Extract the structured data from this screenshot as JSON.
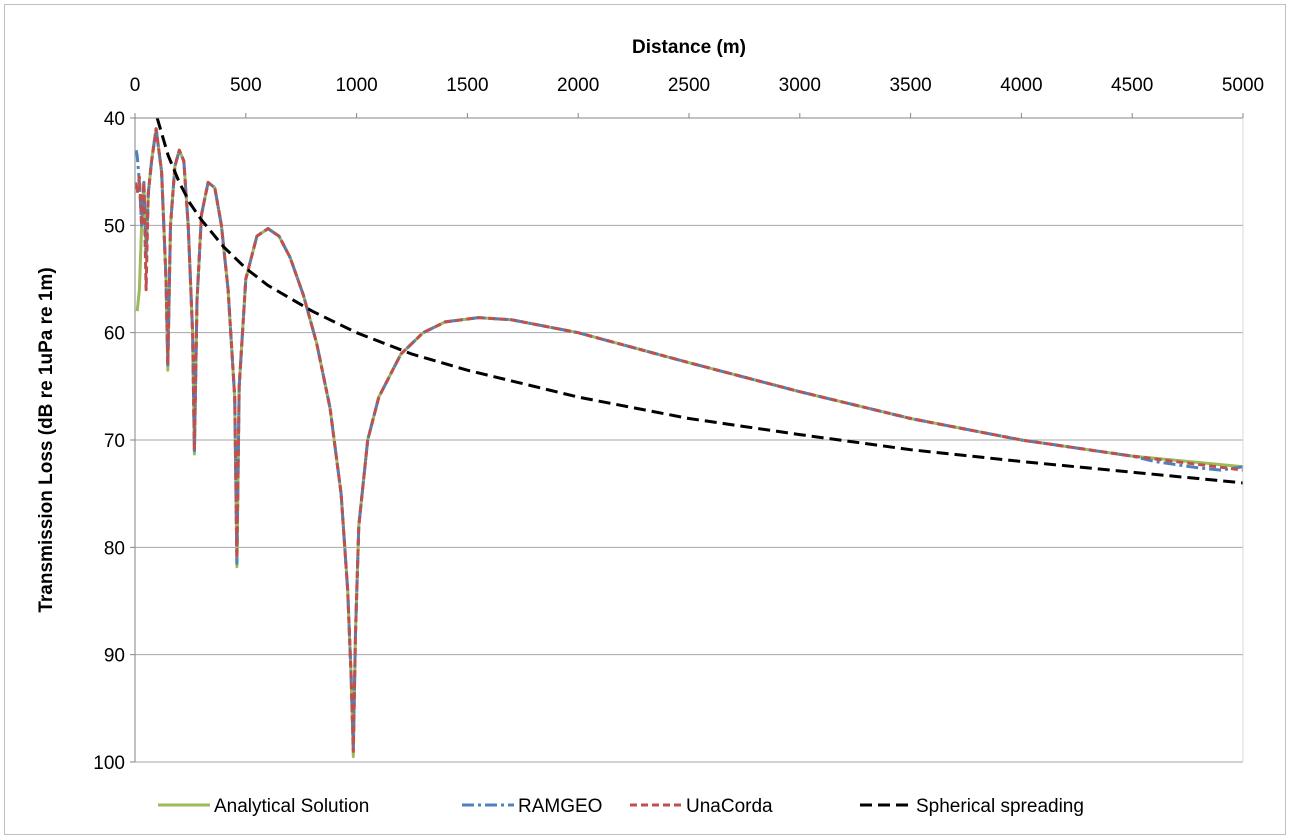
{
  "chart_data": {
    "type": "line",
    "xlabel": "Distance (m)",
    "ylabel": "Transmission Loss (dB re 1uPa re 1m)",
    "x_axis_position": "top",
    "y_axis_reversed": true,
    "xlim": [
      0,
      5000
    ],
    "ylim": [
      40,
      100
    ],
    "x_ticks": [
      0,
      500,
      1000,
      1500,
      2000,
      2500,
      3000,
      3500,
      4000,
      4500,
      5000
    ],
    "y_ticks": [
      40,
      50,
      60,
      70,
      80,
      90,
      100
    ],
    "grid": "horizontal",
    "legend_position": "bottom",
    "series": [
      {
        "name": "Analytical Solution",
        "color": "#9bbb59",
        "style": "solid",
        "x": [
          10,
          20,
          30,
          40,
          50,
          60,
          75,
          95,
          120,
          140,
          148,
          160,
          180,
          200,
          220,
          240,
          260,
          268,
          280,
          300,
          330,
          360,
          390,
          420,
          450,
          460,
          470,
          500,
          550,
          600,
          650,
          700,
          760,
          820,
          880,
          930,
          960,
          975,
          985,
          995,
          1010,
          1050,
          1100,
          1200,
          1300,
          1400,
          1550,
          1700,
          2000,
          2500,
          3000,
          3500,
          4000,
          4500,
          5000
        ],
        "y": [
          58,
          56,
          50,
          46,
          53,
          47,
          44,
          41,
          45,
          55,
          63.5,
          50,
          44.5,
          43,
          44,
          50,
          60,
          71.3,
          57,
          49,
          46,
          46.5,
          50,
          56,
          66,
          81.8,
          65,
          55,
          51,
          50.3,
          51,
          53,
          56.5,
          61,
          67,
          75,
          84,
          92,
          99.5,
          88,
          78,
          70,
          66,
          62,
          60,
          59,
          58.6,
          58.8,
          60,
          62.8,
          65.5,
          68,
          70,
          71.5,
          72.5
        ]
      },
      {
        "name": "RAMGEO",
        "color": "#4f81bd",
        "style": "dash-dot",
        "x": [
          5,
          10,
          20,
          30,
          40,
          50,
          60,
          75,
          95,
          120,
          140,
          148,
          160,
          180,
          200,
          220,
          240,
          260,
          268,
          280,
          300,
          330,
          360,
          390,
          420,
          450,
          460,
          470,
          500,
          550,
          600,
          650,
          700,
          760,
          820,
          880,
          930,
          960,
          975,
          985,
          995,
          1010,
          1050,
          1100,
          1200,
          1300,
          1400,
          1550,
          1700,
          2000,
          2500,
          3000,
          3500,
          4000,
          4200,
          4400,
          4500,
          4600,
          4700,
          4800,
          4900,
          5000
        ],
        "y": [
          43,
          43.5,
          46,
          50,
          46,
          53,
          47,
          44,
          41,
          45,
          55,
          63,
          50,
          44.5,
          43,
          44,
          50,
          60,
          71,
          57,
          49,
          46,
          46.5,
          50,
          56,
          66,
          81.5,
          65,
          55,
          51,
          50.3,
          51,
          53,
          56.5,
          61,
          67,
          75,
          84,
          92,
          98.5,
          88,
          78,
          70,
          66,
          62,
          60,
          59,
          58.6,
          58.8,
          60,
          62.8,
          65.5,
          68,
          70,
          70.6,
          71.2,
          71.5,
          72,
          72.3,
          72.6,
          72.8,
          72.5
        ]
      },
      {
        "name": "UnaCorda",
        "color": "#c0504d",
        "style": "dashed",
        "x": [
          5,
          10,
          20,
          30,
          40,
          50,
          60,
          75,
          95,
          120,
          140,
          148,
          160,
          180,
          200,
          220,
          240,
          260,
          268,
          280,
          300,
          330,
          360,
          390,
          420,
          450,
          460,
          470,
          500,
          550,
          600,
          650,
          700,
          760,
          820,
          880,
          930,
          960,
          975,
          985,
          995,
          1010,
          1050,
          1100,
          1200,
          1300,
          1400,
          1550,
          1700,
          2000,
          2500,
          3000,
          3500,
          4000,
          4500,
          5000
        ],
        "y": [
          46,
          47,
          45.5,
          50,
          46,
          56,
          47,
          44,
          41,
          45,
          55,
          63,
          50,
          44.5,
          43,
          44,
          50,
          60,
          71,
          57,
          49,
          46,
          46.5,
          50,
          56,
          66,
          81,
          65,
          55,
          51,
          50.3,
          51,
          53,
          56.5,
          61,
          67,
          75,
          84,
          92,
          99,
          88,
          78,
          70,
          66,
          62,
          60,
          59,
          58.6,
          58.8,
          60,
          62.8,
          65.5,
          68,
          70,
          71.5,
          72.8
        ]
      },
      {
        "name": "Spherical spreading",
        "color": "#000000",
        "style": "long-dash",
        "x": [
          100,
          150,
          200,
          250,
          300,
          400,
          500,
          600,
          800,
          1000,
          1250,
          1500,
          2000,
          2500,
          3000,
          3500,
          4000,
          4500,
          5000
        ],
        "y": [
          40,
          43.5,
          46,
          48,
          49.5,
          52,
          54,
          55.6,
          58,
          60,
          62,
          63.5,
          66,
          68,
          69.5,
          70.9,
          72,
          73,
          74
        ]
      }
    ]
  }
}
